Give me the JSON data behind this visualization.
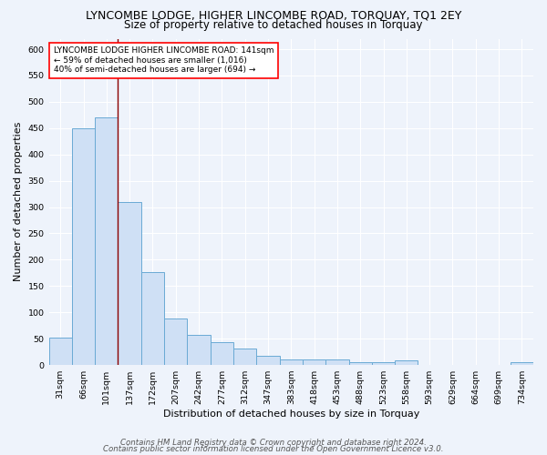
{
  "title": "LYNCOMBE LODGE, HIGHER LINCOMBE ROAD, TORQUAY, TQ1 2EY",
  "subtitle": "Size of property relative to detached houses in Torquay",
  "xlabel": "Distribution of detached houses by size in Torquay",
  "ylabel": "Number of detached properties",
  "categories": [
    "31sqm",
    "66sqm",
    "101sqm",
    "137sqm",
    "172sqm",
    "207sqm",
    "242sqm",
    "277sqm",
    "312sqm",
    "347sqm",
    "383sqm",
    "418sqm",
    "453sqm",
    "488sqm",
    "523sqm",
    "558sqm",
    "593sqm",
    "629sqm",
    "664sqm",
    "699sqm",
    "734sqm"
  ],
  "values": [
    52,
    450,
    470,
    310,
    177,
    88,
    57,
    43,
    32,
    17,
    10,
    10,
    10,
    6,
    6,
    8,
    1,
    1,
    1,
    1,
    5
  ],
  "bar_color": "#cfe0f5",
  "bar_edge_color": "#6aaad4",
  "marker_line_color": "#8b0000",
  "annotation_text": "LYNCOMBE LODGE HIGHER LINCOMBE ROAD: 141sqm\n← 59% of detached houses are smaller (1,016)\n40% of semi-detached houses are larger (694) →",
  "annotation_box_color": "white",
  "annotation_box_edge_color": "red",
  "ylim": [
    0,
    620
  ],
  "yticks": [
    0,
    50,
    100,
    150,
    200,
    250,
    300,
    350,
    400,
    450,
    500,
    550,
    600
  ],
  "footer1": "Contains HM Land Registry data © Crown copyright and database right 2024.",
  "footer2": "Contains public sector information licensed under the Open Government Licence v3.0.",
  "bg_color": "#eef3fb",
  "grid_color": "white",
  "title_fontsize": 9,
  "subtitle_fontsize": 8.5,
  "label_fontsize": 8,
  "tick_fontsize": 6.8,
  "annotation_fontsize": 6.5,
  "footer_fontsize": 6.2
}
